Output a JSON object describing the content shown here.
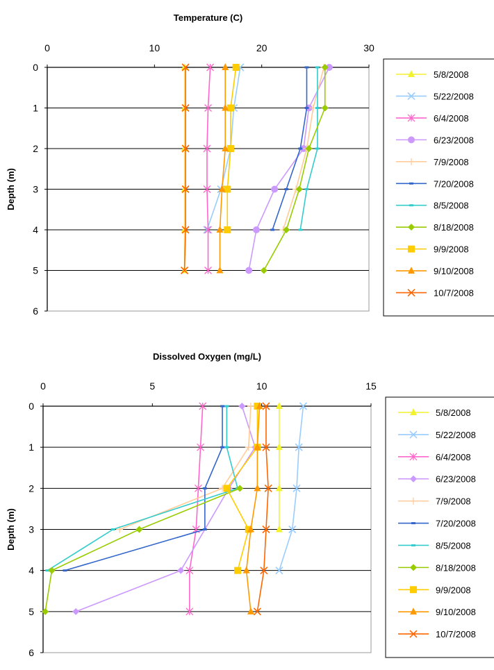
{
  "chart_data": [
    {
      "type": "line",
      "title": "Temperature (C)",
      "xlabel": "",
      "ylabel": "Depth (m)",
      "xlim": [
        0,
        30
      ],
      "ylim": [
        0,
        6
      ],
      "x_ticks": [
        0,
        10,
        20,
        30
      ],
      "y_ticks": [
        0,
        1,
        2,
        3,
        4,
        5,
        6
      ],
      "y_reversed": true,
      "x_axis_position": "top",
      "grid": "horizontal",
      "legend_position": "right",
      "series": [
        {
          "name": "5/8/2008",
          "color": "#f2f230",
          "marker": "triangle",
          "points": [
            [
              12.8,
              0
            ],
            [
              12.8,
              1
            ],
            [
              12.8,
              2
            ],
            [
              12.8,
              3
            ],
            [
              12.8,
              4
            ],
            [
              12.8,
              5
            ]
          ]
        },
        {
          "name": "5/22/2008",
          "color": "#99ccff",
          "marker": "x",
          "points": [
            [
              18.0,
              0
            ],
            [
              17.4,
              1
            ],
            [
              17.1,
              2
            ],
            [
              16.2,
              3
            ],
            [
              14.9,
              4
            ]
          ]
        },
        {
          "name": "6/4/2008",
          "color": "#ff66cc",
          "marker": "asterisk",
          "points": [
            [
              15.2,
              0
            ],
            [
              15.0,
              1
            ],
            [
              14.9,
              2
            ],
            [
              14.9,
              3
            ],
            [
              15.0,
              4
            ],
            [
              15.0,
              5
            ]
          ]
        },
        {
          "name": "6/23/2008",
          "color": "#cc99ff",
          "marker": "circle",
          "points": [
            [
              26.3,
              0
            ],
            [
              24.4,
              1
            ],
            [
              23.9,
              2
            ],
            [
              21.2,
              3
            ],
            [
              19.5,
              4
            ],
            [
              18.8,
              5
            ]
          ]
        },
        {
          "name": "7/9/2008",
          "color": "#ffcc99",
          "marker": "plus",
          "points": [
            [
              25.8,
              0
            ],
            [
              24.8,
              1
            ],
            [
              24.2,
              2
            ],
            [
              23.2,
              3
            ],
            [
              22.0,
              4
            ]
          ]
        },
        {
          "name": "7/20/2008",
          "color": "#3366cc",
          "marker": "dash",
          "points": [
            [
              24.2,
              0
            ],
            [
              24.2,
              1
            ],
            [
              23.6,
              2
            ],
            [
              22.3,
              3
            ],
            [
              21.0,
              4
            ]
          ]
        },
        {
          "name": "8/5/2008",
          "color": "#33cccc",
          "marker": "dash",
          "points": [
            [
              25.2,
              0
            ],
            [
              25.2,
              1
            ],
            [
              25.2,
              2
            ],
            [
              24.2,
              3
            ],
            [
              23.6,
              4
            ]
          ]
        },
        {
          "name": "8/18/2008",
          "color": "#99cc00",
          "marker": "diamond",
          "points": [
            [
              25.9,
              0
            ],
            [
              25.9,
              1
            ],
            [
              24.4,
              2
            ],
            [
              23.5,
              3
            ],
            [
              22.3,
              4
            ],
            [
              20.2,
              5
            ]
          ]
        },
        {
          "name": "9/9/2008",
          "color": "#ffcc00",
          "marker": "square",
          "points": [
            [
              17.6,
              0
            ],
            [
              17.1,
              1
            ],
            [
              17.1,
              2
            ],
            [
              16.8,
              3
            ],
            [
              16.8,
              4
            ]
          ]
        },
        {
          "name": "9/10/2008",
          "color": "#ff9900",
          "marker": "triangle",
          "points": [
            [
              16.6,
              0
            ],
            [
              16.6,
              1
            ],
            [
              16.6,
              2
            ],
            [
              16.3,
              3
            ],
            [
              16.1,
              4
            ],
            [
              16.1,
              5
            ]
          ]
        },
        {
          "name": "10/7/2008",
          "color": "#ff6600",
          "marker": "x",
          "points": [
            [
              12.9,
              0
            ],
            [
              12.9,
              1
            ],
            [
              12.9,
              2
            ],
            [
              12.9,
              3
            ],
            [
              12.9,
              4
            ],
            [
              12.8,
              5
            ]
          ]
        }
      ]
    },
    {
      "type": "line",
      "title": "Dissolved Oxygen (mg/L)",
      "xlabel": "",
      "ylabel": "Depth (m)",
      "xlim": [
        0,
        15
      ],
      "ylim": [
        0,
        6
      ],
      "x_ticks": [
        0,
        5,
        10,
        15
      ],
      "y_ticks": [
        0,
        1,
        2,
        3,
        4,
        5,
        6
      ],
      "y_reversed": true,
      "x_axis_position": "top",
      "grid": "horizontal",
      "legend_position": "right",
      "series": [
        {
          "name": "5/8/2008",
          "color": "#f2f230",
          "marker": "triangle",
          "points": [
            [
              10.8,
              0
            ],
            [
              10.8,
              1
            ],
            [
              10.8,
              2
            ],
            [
              10.8,
              3
            ]
          ]
        },
        {
          "name": "5/22/2008",
          "color": "#99ccff",
          "marker": "x",
          "points": [
            [
              11.9,
              0
            ],
            [
              11.7,
              1
            ],
            [
              11.6,
              2
            ],
            [
              11.4,
              3
            ],
            [
              10.8,
              4
            ]
          ]
        },
        {
          "name": "6/4/2008",
          "color": "#ff66cc",
          "marker": "asterisk",
          "points": [
            [
              7.3,
              0
            ],
            [
              7.2,
              1
            ],
            [
              7.1,
              2
            ],
            [
              7.0,
              3
            ],
            [
              6.7,
              4
            ],
            [
              6.7,
              5
            ]
          ]
        },
        {
          "name": "6/23/2008",
          "color": "#cc99ff",
          "marker": "diamond",
          "points": [
            [
              9.1,
              0
            ],
            [
              9.7,
              1
            ],
            [
              8.5,
              2
            ],
            [
              6.3,
              4
            ],
            [
              1.5,
              5
            ]
          ]
        },
        {
          "name": "7/9/2008",
          "color": "#ffcc99",
          "marker": "plus",
          "points": [
            [
              9.5,
              0
            ],
            [
              9.4,
              1
            ],
            [
              8.2,
              2
            ],
            [
              3.5,
              3
            ]
          ]
        },
        {
          "name": "7/20/2008",
          "color": "#3366cc",
          "marker": "dash",
          "points": [
            [
              8.2,
              0
            ],
            [
              8.2,
              1
            ],
            [
              7.4,
              2
            ],
            [
              7.4,
              3
            ],
            [
              1.0,
              4
            ]
          ]
        },
        {
          "name": "8/5/2008",
          "color": "#33cccc",
          "marker": "dash",
          "points": [
            [
              8.4,
              0
            ],
            [
              8.4,
              1
            ],
            [
              8.9,
              2
            ],
            [
              3.2,
              3
            ],
            [
              0.2,
              4
            ]
          ]
        },
        {
          "name": "8/18/2008",
          "color": "#99cc00",
          "marker": "diamond",
          "points": [
            [
              9.0,
              2
            ],
            [
              4.4,
              3
            ],
            [
              0.4,
              4
            ],
            [
              0.1,
              5
            ]
          ]
        },
        {
          "name": "9/9/2008",
          "color": "#ffcc00",
          "marker": "square",
          "points": [
            [
              9.8,
              0
            ],
            [
              9.8,
              1
            ],
            [
              8.4,
              2
            ],
            [
              9.4,
              3
            ],
            [
              8.9,
              4
            ]
          ]
        },
        {
          "name": "9/10/2008",
          "color": "#ff9900",
          "marker": "triangle",
          "points": [
            [
              9.9,
              0
            ],
            [
              9.8,
              1
            ],
            [
              9.8,
              2
            ],
            [
              9.5,
              3
            ],
            [
              9.3,
              4
            ],
            [
              9.5,
              5
            ]
          ]
        },
        {
          "name": "10/7/2008",
          "color": "#ff6600",
          "marker": "x",
          "points": [
            [
              10.2,
              0
            ],
            [
              10.2,
              1
            ],
            [
              10.3,
              2
            ],
            [
              10.2,
              3
            ],
            [
              10.1,
              4
            ],
            [
              9.8,
              5
            ]
          ]
        }
      ]
    }
  ]
}
